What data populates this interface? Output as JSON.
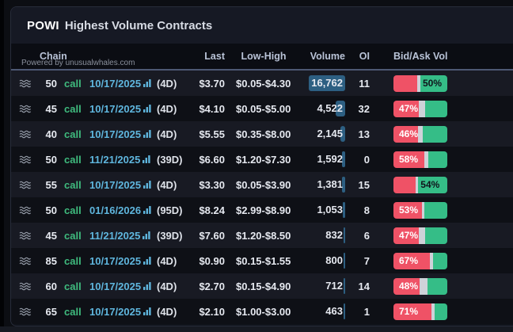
{
  "header": {
    "ticker": "POWI",
    "title": "Highest Volume Contracts"
  },
  "watermark": "Powered by unusualwhales.com",
  "columns": {
    "chain": "Chain",
    "last": "Last",
    "low_high": "Low-High",
    "volume": "Volume",
    "oi": "OI",
    "bid_ask": "Bid/Ask Vol"
  },
  "icons": {
    "chain_icon": "waves-icon",
    "date_icon": "mini-chart-icon"
  },
  "colors": {
    "call_green": "#3fbb7e",
    "date_cyan": "#5fb6de",
    "volume_bar_blue": "#2d5f82",
    "bid_red": "#ef5266",
    "neutral_gray": "#ced2d9",
    "ask_green": "#35bd87",
    "row_odd": "#181a23",
    "row_even": "#0e1016",
    "header_underline": "#4d5873"
  },
  "volume_scale_max": 16762,
  "rows": [
    {
      "strike": "50",
      "side": "call",
      "date": "10/17/2025",
      "dte": "(4D)",
      "last": "$3.70",
      "low_high": "$0.05-$4.30",
      "volume": 16762,
      "volume_display": "16,762",
      "oi": "11",
      "bid_pct": 44,
      "neutral_pct": 6,
      "ask_pct": 50,
      "bid_ask_label": "50%",
      "label_side": "ask"
    },
    {
      "strike": "45",
      "side": "call",
      "date": "10/17/2025",
      "dte": "(4D)",
      "last": "$4.10",
      "low_high": "$0.05-$5.00",
      "volume": 4522,
      "volume_display": "4,522",
      "oi": "32",
      "bid_pct": 47,
      "neutral_pct": 12,
      "ask_pct": 41,
      "bid_ask_label": "47%",
      "label_side": "bid"
    },
    {
      "strike": "40",
      "side": "call",
      "date": "10/17/2025",
      "dte": "(4D)",
      "last": "$5.55",
      "low_high": "$0.35-$8.00",
      "volume": 2145,
      "volume_display": "2,145",
      "oi": "13",
      "bid_pct": 46,
      "neutral_pct": 8,
      "ask_pct": 46,
      "bid_ask_label": "46%",
      "label_side": "bid"
    },
    {
      "strike": "50",
      "side": "call",
      "date": "11/21/2025",
      "dte": "(39D)",
      "last": "$6.60",
      "low_high": "$1.20-$7.30",
      "volume": 1592,
      "volume_display": "1,592",
      "oi": "0",
      "bid_pct": 58,
      "neutral_pct": 7,
      "ask_pct": 35,
      "bid_ask_label": "58%",
      "label_side": "bid"
    },
    {
      "strike": "55",
      "side": "call",
      "date": "10/17/2025",
      "dte": "(4D)",
      "last": "$3.30",
      "low_high": "$0.05-$3.90",
      "volume": 1381,
      "volume_display": "1,381",
      "oi": "15",
      "bid_pct": 41,
      "neutral_pct": 5,
      "ask_pct": 54,
      "bid_ask_label": "54%",
      "label_side": "ask"
    },
    {
      "strike": "50",
      "side": "call",
      "date": "01/16/2026",
      "dte": "(95D)",
      "last": "$8.24",
      "low_high": "$2.99-$8.90",
      "volume": 1053,
      "volume_display": "1,053",
      "oi": "8",
      "bid_pct": 53,
      "neutral_pct": 5,
      "ask_pct": 42,
      "bid_ask_label": "53%",
      "label_side": "bid"
    },
    {
      "strike": "45",
      "side": "call",
      "date": "11/21/2025",
      "dte": "(39D)",
      "last": "$7.60",
      "low_high": "$1.20-$8.50",
      "volume": 832,
      "volume_display": "832",
      "oi": "6",
      "bid_pct": 47,
      "neutral_pct": 12,
      "ask_pct": 41,
      "bid_ask_label": "47%",
      "label_side": "bid"
    },
    {
      "strike": "85",
      "side": "call",
      "date": "10/17/2025",
      "dte": "(4D)",
      "last": "$0.90",
      "low_high": "$0.15-$1.55",
      "volume": 800,
      "volume_display": "800",
      "oi": "7",
      "bid_pct": 67,
      "neutral_pct": 6,
      "ask_pct": 27,
      "bid_ask_label": "67%",
      "label_side": "bid"
    },
    {
      "strike": "60",
      "side": "call",
      "date": "10/17/2025",
      "dte": "(4D)",
      "last": "$2.70",
      "low_high": "$0.15-$4.90",
      "volume": 712,
      "volume_display": "712",
      "oi": "14",
      "bid_pct": 48,
      "neutral_pct": 15,
      "ask_pct": 37,
      "bid_ask_label": "48%",
      "label_side": "bid"
    },
    {
      "strike": "65",
      "side": "call",
      "date": "10/17/2025",
      "dte": "(4D)",
      "last": "$2.10",
      "low_high": "$1.00-$3.00",
      "volume": 463,
      "volume_display": "463",
      "oi": "1",
      "bid_pct": 71,
      "neutral_pct": 6,
      "ask_pct": 23,
      "bid_ask_label": "71%",
      "label_side": "bid"
    }
  ]
}
